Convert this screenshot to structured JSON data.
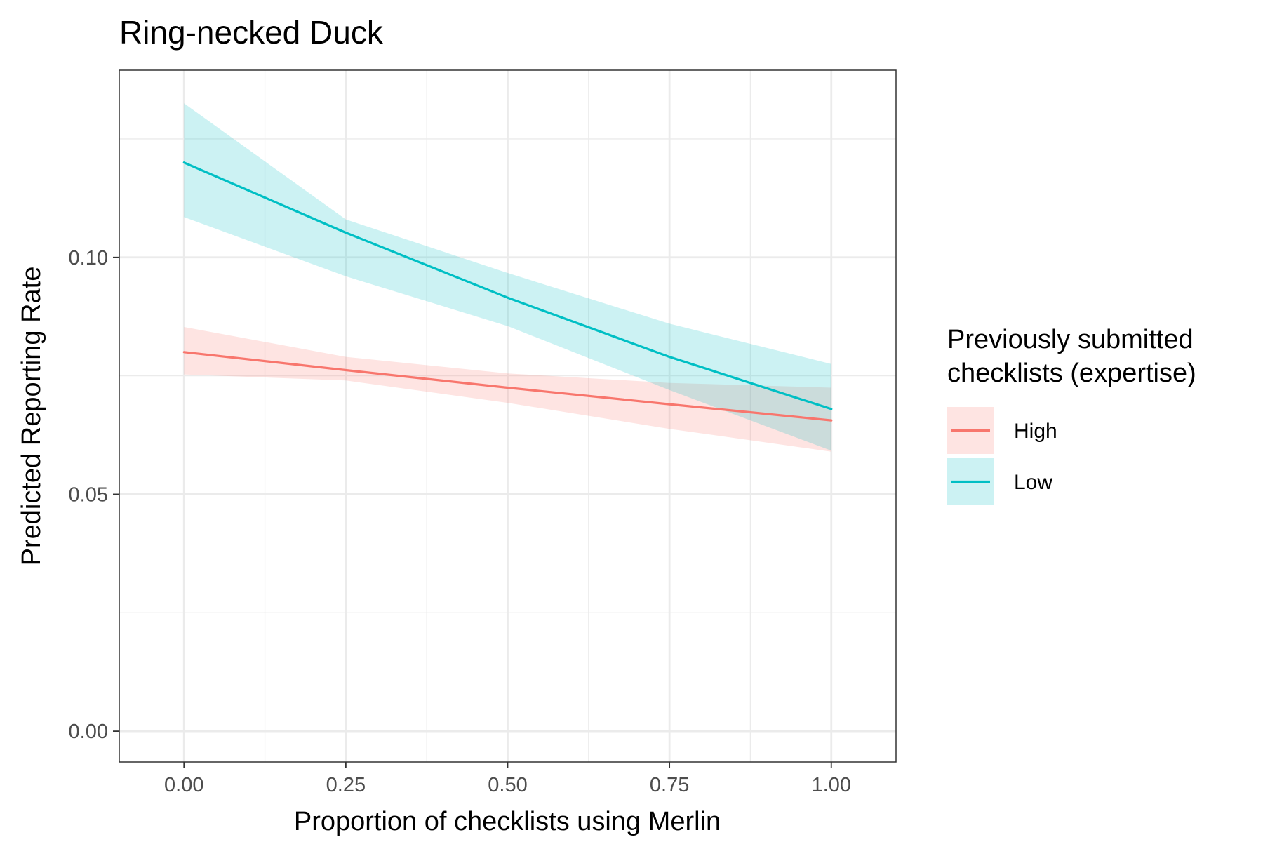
{
  "chart_data": {
    "type": "line",
    "title": "Ring-necked Duck",
    "xlabel": "Proportion of checklists using Merlin",
    "ylabel": "Predicted Reporting Rate",
    "xlim": [
      -0.1,
      1.1
    ],
    "ylim": [
      -0.0065,
      0.1395
    ],
    "x_ticks": [
      0.0,
      0.25,
      0.5,
      0.75,
      1.0
    ],
    "x_tick_labels": [
      "0.00",
      "0.25",
      "0.50",
      "0.75",
      "1.00"
    ],
    "y_ticks": [
      0.0,
      0.05,
      0.1
    ],
    "y_tick_labels": [
      "0.00",
      "0.05",
      "0.10"
    ],
    "grid": true,
    "legend": {
      "title_lines": [
        "Previously submitted",
        "checklists (expertise)"
      ],
      "placement": "right"
    },
    "x": [
      0.0,
      0.25,
      0.5,
      0.75,
      1.0
    ],
    "series": [
      {
        "name": "High",
        "color": "#F8766D",
        "values": [
          0.08,
          0.0762,
          0.0725,
          0.069,
          0.0656
        ],
        "lower": [
          0.0753,
          0.074,
          0.0693,
          0.0638,
          0.059
        ],
        "upper": [
          0.0853,
          0.079,
          0.0755,
          0.0735,
          0.0725
        ]
      },
      {
        "name": "Low",
        "color": "#00BFC4",
        "values": [
          0.12,
          0.1052,
          0.0915,
          0.079,
          0.068
        ],
        "lower": [
          0.1085,
          0.096,
          0.0855,
          0.072,
          0.0592
        ],
        "upper": [
          0.1325,
          0.108,
          0.0967,
          0.086,
          0.0775
        ]
      }
    ]
  }
}
